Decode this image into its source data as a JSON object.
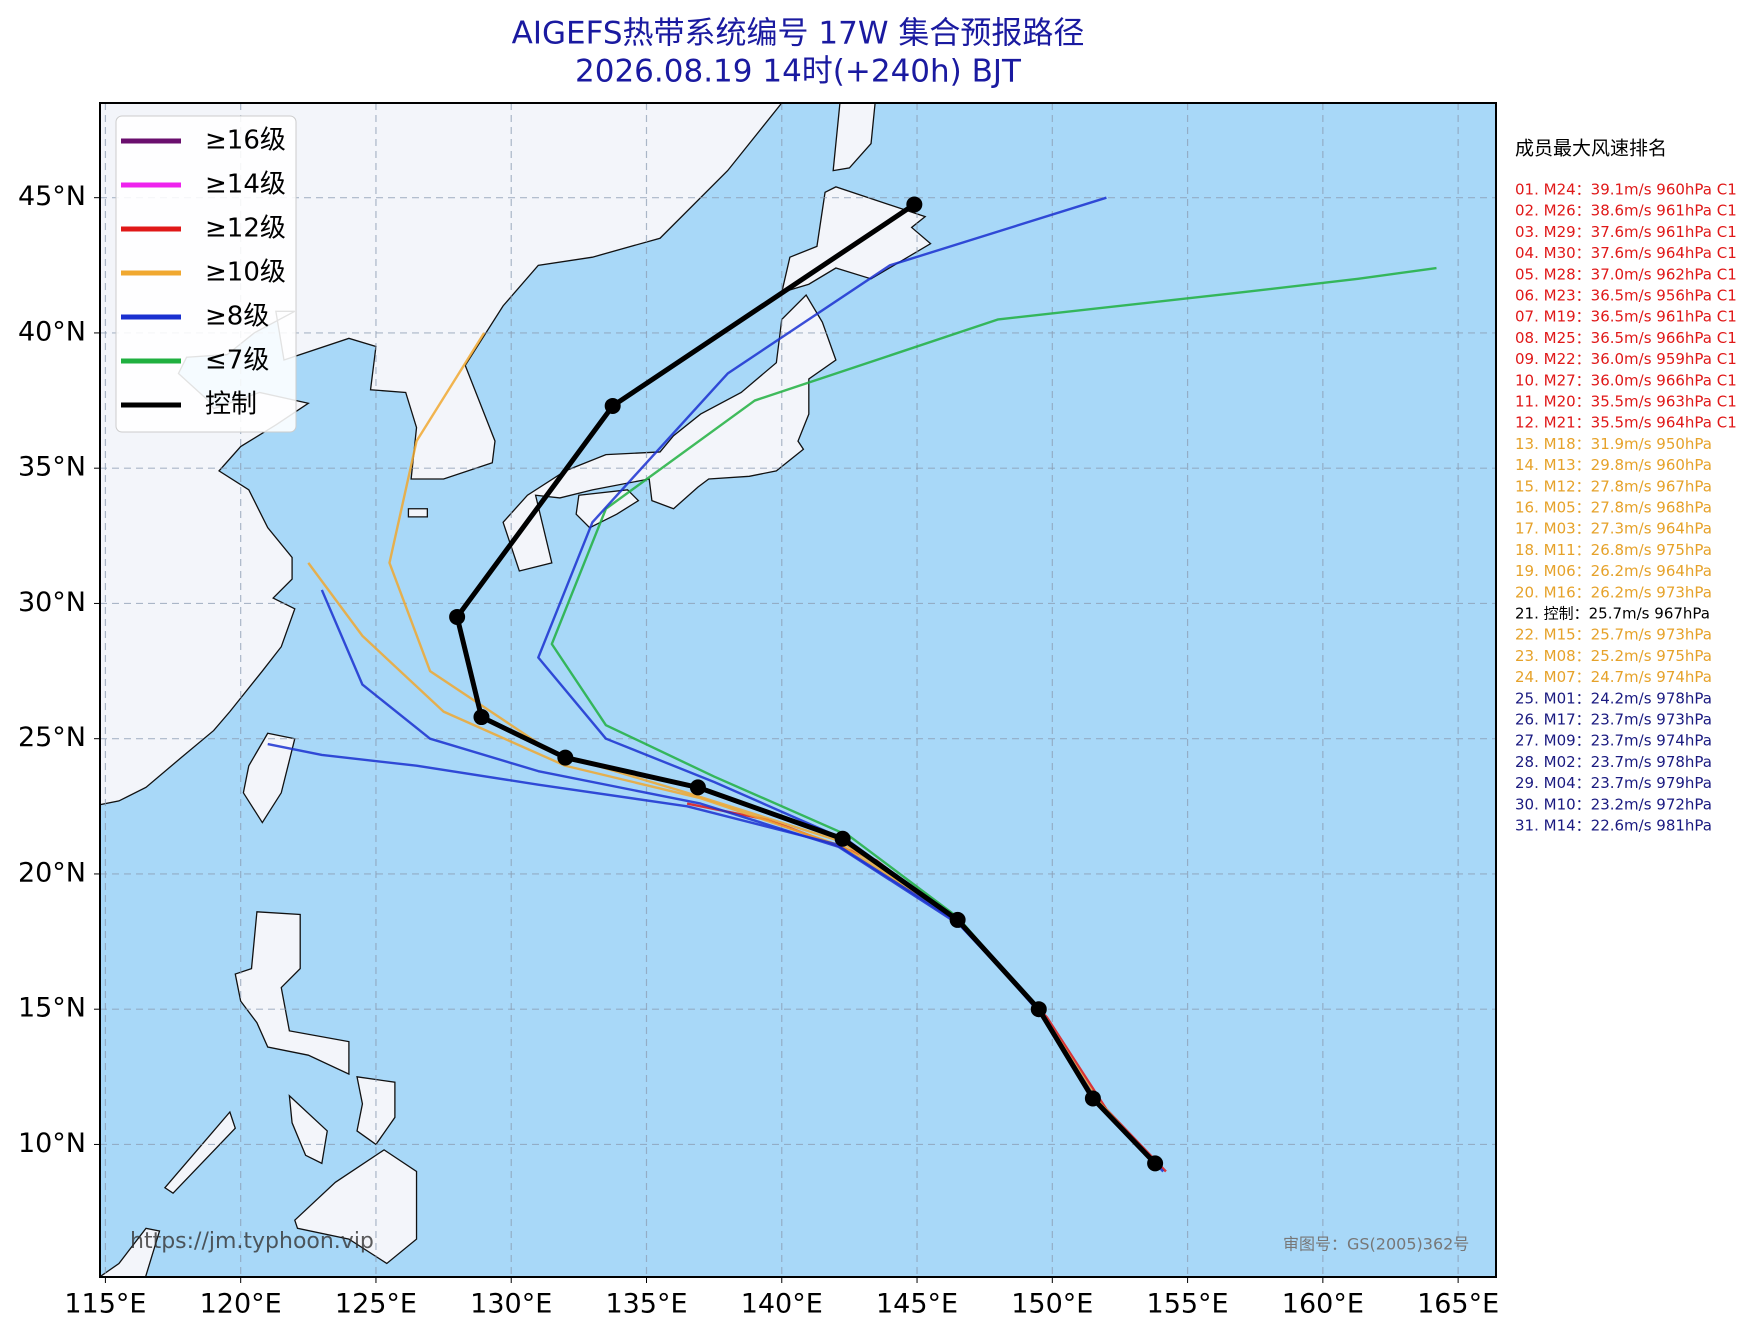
{
  "chart_data": {
    "type": "track-map",
    "title": "AIGEFS热带系统编号 17W 集合预报路径",
    "subtitle": "2026.08.19 14时(+240h) BJT",
    "xlim": [
      114.8,
      166.4
    ],
    "ylim": [
      5.1,
      48.5
    ],
    "xticks": [
      {
        "value": 115,
        "label": "115°E"
      },
      {
        "value": 120,
        "label": "120°E"
      },
      {
        "value": 125,
        "label": "125°E"
      },
      {
        "value": 130,
        "label": "130°E"
      },
      {
        "value": 135,
        "label": "135°E"
      },
      {
        "value": 140,
        "label": "140°E"
      },
      {
        "value": 145,
        "label": "145°E"
      },
      {
        "value": 150,
        "label": "150°E"
      },
      {
        "value": 155,
        "label": "155°E"
      },
      {
        "value": 160,
        "label": "160°E"
      },
      {
        "value": 165,
        "label": "165°E"
      }
    ],
    "yticks": [
      {
        "value": 10,
        "label": "10°N"
      },
      {
        "value": 15,
        "label": "15°N"
      },
      {
        "value": 20,
        "label": "20°N"
      },
      {
        "value": 25,
        "label": "25°N"
      },
      {
        "value": 30,
        "label": "30°N"
      },
      {
        "value": 35,
        "label": "35°N"
      },
      {
        "value": 40,
        "label": "40°N"
      },
      {
        "value": 45,
        "label": "45°N"
      }
    ],
    "grid": true,
    "legend": [
      {
        "label": "≥16级",
        "color": "#6a0f6e"
      },
      {
        "label": "≥14级",
        "color": "#ee22ee"
      },
      {
        "label": "≥12级",
        "color": "#e01818"
      },
      {
        "label": "≥10级",
        "color": "#f0a830"
      },
      {
        "label": "≥8级",
        "color": "#1a30d0"
      },
      {
        "label": "≤7级",
        "color": "#20b040"
      },
      {
        "label": "控制",
        "color": "#000000"
      }
    ],
    "series": [
      {
        "color": "#e01818",
        "lon": [
          154.2,
          152.0,
          149.8,
          147.0,
          143.5,
          139.5,
          136.5
        ],
        "lat": [
          9.0,
          11.3,
          14.7,
          17.8,
          20.5,
          22.0,
          22.6
        ]
      },
      {
        "color": "#f0a830",
        "lon": [
          154.0,
          151.7,
          149.6,
          146.6,
          142.3,
          137.0,
          132.0,
          127.5,
          124.5,
          122.5
        ],
        "lat": [
          9.1,
          11.6,
          14.9,
          18.2,
          21.0,
          22.8,
          24.0,
          26.0,
          28.8,
          31.5
        ]
      },
      {
        "color": "#1a30d0",
        "lon": [
          153.9,
          151.5,
          149.4,
          146.4,
          142.0,
          136.5,
          131.0,
          126.5,
          123.0,
          121.0
        ],
        "lat": [
          9.2,
          11.8,
          15.1,
          18.3,
          21.1,
          22.5,
          23.3,
          24.0,
          24.4,
          24.8
        ]
      },
      {
        "color": "#20b040",
        "lon": [
          153.8,
          151.4,
          149.4,
          146.5,
          142.5,
          137.5,
          133.5,
          131.5,
          133.5,
          139.0,
          148.0,
          157.0,
          161.3,
          164.2
        ],
        "lat": [
          9.3,
          11.9,
          15.1,
          18.4,
          21.4,
          23.6,
          25.5,
          28.5,
          33.5,
          37.5,
          40.5,
          41.5,
          42.0,
          42.4
        ]
      },
      {
        "color": "#f0a830",
        "lon": [
          153.9,
          151.6,
          149.5,
          146.5,
          142.2,
          136.5,
          131.5,
          127.0,
          125.5,
          126.5,
          129.0
        ],
        "lat": [
          9.2,
          11.7,
          15.0,
          18.3,
          21.2,
          23.0,
          24.5,
          27.5,
          31.5,
          36.0,
          40.0
        ]
      },
      {
        "color": "#1a30d0",
        "lon": [
          154.0,
          151.6,
          149.5,
          146.6,
          142.5,
          137.5,
          133.5,
          131.0,
          133.0,
          138.0,
          144.0,
          152.0
        ],
        "lat": [
          9.1,
          11.6,
          14.9,
          18.2,
          21.2,
          23.4,
          25.0,
          28.0,
          33.0,
          38.5,
          42.5,
          45.0
        ]
      },
      {
        "color": "#1a30d0",
        "lon": [
          154.1,
          151.7,
          149.6,
          146.6,
          142.1,
          137.0,
          131.0,
          127.0,
          124.5,
          123.0
        ],
        "lat": [
          9.0,
          11.5,
          14.9,
          18.1,
          21.0,
          22.6,
          23.8,
          25.0,
          27.0,
          30.5
        ]
      }
    ],
    "control_track": {
      "color": "#000000",
      "lon": [
        153.8,
        151.5,
        149.5,
        146.5,
        142.25,
        136.9,
        132.0,
        128.9,
        128.0,
        133.75,
        144.9
      ],
      "lat": [
        9.3,
        11.7,
        15.0,
        18.3,
        21.3,
        23.2,
        24.3,
        25.8,
        29.5,
        37.3,
        44.75
      ]
    },
    "ranking": {
      "title": "成员最大风速排名",
      "items": [
        {
          "text": "01. M24：39.1m/s 960hPa C1",
          "color": "#e01818"
        },
        {
          "text": "02. M26：38.6m/s 961hPa C1",
          "color": "#e01818"
        },
        {
          "text": "03. M29：37.6m/s 961hPa C1",
          "color": "#e01818"
        },
        {
          "text": "04. M30：37.6m/s 964hPa C1",
          "color": "#e01818"
        },
        {
          "text": "05. M28：37.0m/s 962hPa C1",
          "color": "#e01818"
        },
        {
          "text": "06. M23：36.5m/s 956hPa C1",
          "color": "#e01818"
        },
        {
          "text": "07. M19：36.5m/s 961hPa C1",
          "color": "#e01818"
        },
        {
          "text": "08. M25：36.5m/s 966hPa C1",
          "color": "#e01818"
        },
        {
          "text": "09. M22：36.0m/s 959hPa C1",
          "color": "#e01818"
        },
        {
          "text": "10. M27：36.0m/s 966hPa C1",
          "color": "#e01818"
        },
        {
          "text": "11. M20：35.5m/s 963hPa C1",
          "color": "#e01818"
        },
        {
          "text": "12. M21：35.5m/s 964hPa C1",
          "color": "#e01818"
        },
        {
          "text": "13. M18：31.9m/s 950hPa",
          "color": "#e6a22a"
        },
        {
          "text": "14. M13：29.8m/s 960hPa",
          "color": "#e6a22a"
        },
        {
          "text": "15. M12：27.8m/s 967hPa",
          "color": "#e6a22a"
        },
        {
          "text": "16. M05：27.8m/s 968hPa",
          "color": "#e6a22a"
        },
        {
          "text": "17. M03：27.3m/s 964hPa",
          "color": "#e6a22a"
        },
        {
          "text": "18. M11：26.8m/s 975hPa",
          "color": "#e6a22a"
        },
        {
          "text": "19. M06：26.2m/s 964hPa",
          "color": "#e6a22a"
        },
        {
          "text": "20. M16：26.2m/s 973hPa",
          "color": "#e6a22a"
        },
        {
          "text": "21. 控制：25.7m/s 967hPa",
          "color": "#000000"
        },
        {
          "text": "22. M15：25.7m/s 973hPa",
          "color": "#e6a22a"
        },
        {
          "text": "23. M08：25.2m/s 975hPa",
          "color": "#e6a22a"
        },
        {
          "text": "24. M07：24.7m/s 974hPa",
          "color": "#e6a22a"
        },
        {
          "text": "25. M01：24.2m/s 978hPa",
          "color": "#1a1a80"
        },
        {
          "text": "26. M17：23.7m/s 973hPa",
          "color": "#1a1a80"
        },
        {
          "text": "27. M09：23.7m/s 974hPa",
          "color": "#1a1a80"
        },
        {
          "text": "28. M02：23.7m/s 978hPa",
          "color": "#1a1a80"
        },
        {
          "text": "29. M04：23.7m/s 979hPa",
          "color": "#1a1a80"
        },
        {
          "text": "30. M10：23.2m/s 972hPa",
          "color": "#1a1a80"
        },
        {
          "text": "31. M14：22.6m/s 981hPa",
          "color": "#1a1a80"
        }
      ]
    },
    "source_url": "https://jm.typhoon.vip",
    "map_approval": "审图号：GS(2005)362号"
  }
}
